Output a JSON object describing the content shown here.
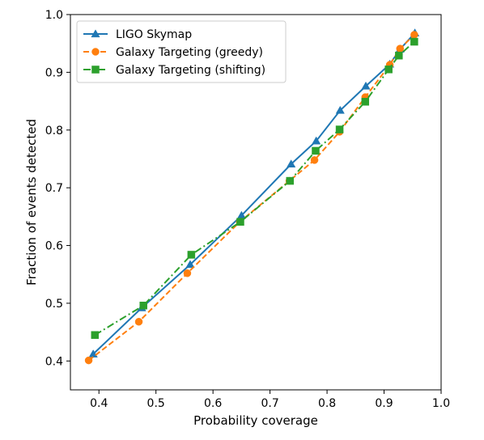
{
  "chart_data": {
    "type": "line",
    "title": "",
    "xlabel": "Probability coverage",
    "ylabel": "Fraction of events detected",
    "xlim": [
      0.35,
      1.0
    ],
    "ylim": [
      0.35,
      1.0
    ],
    "xticks": [
      "0.4",
      "0.5",
      "0.6",
      "0.7",
      "0.8",
      "0.9",
      "1.0"
    ],
    "yticks": [
      "0.4",
      "0.5",
      "0.6",
      "0.7",
      "0.8",
      "0.9",
      "1.0"
    ],
    "grid": false,
    "legend_position": "top-left",
    "series": [
      {
        "name": "LIGO Skymap",
        "color": "#1f77b4",
        "line_style": "solid",
        "marker": "triangle",
        "x": [
          0.39,
          0.475,
          0.56,
          0.65,
          0.737,
          0.781,
          0.823,
          0.868,
          0.91,
          0.928,
          0.954
        ],
        "y": [
          0.412,
          0.492,
          0.567,
          0.652,
          0.741,
          0.781,
          0.834,
          0.876,
          0.914,
          0.94,
          0.968
        ]
      },
      {
        "name": "Galaxy Targeting (greedy)",
        "color": "#ff7f0e",
        "line_style": "dashed",
        "marker": "circle",
        "x": [
          0.382,
          0.47,
          0.555,
          0.647,
          0.734,
          0.778,
          0.822,
          0.867,
          0.91,
          0.928,
          0.953
        ],
        "y": [
          0.401,
          0.468,
          0.552,
          0.641,
          0.712,
          0.748,
          0.797,
          0.857,
          0.913,
          0.941,
          0.965
        ]
      },
      {
        "name": "Galaxy Targeting (shifting)",
        "color": "#2ca02c",
        "line_style": "dashdot",
        "marker": "square",
        "x": [
          0.393,
          0.478,
          0.562,
          0.648,
          0.735,
          0.78,
          0.822,
          0.867,
          0.908,
          0.926,
          0.953
        ],
        "y": [
          0.445,
          0.496,
          0.584,
          0.641,
          0.712,
          0.764,
          0.801,
          0.849,
          0.905,
          0.929,
          0.953
        ]
      }
    ]
  }
}
